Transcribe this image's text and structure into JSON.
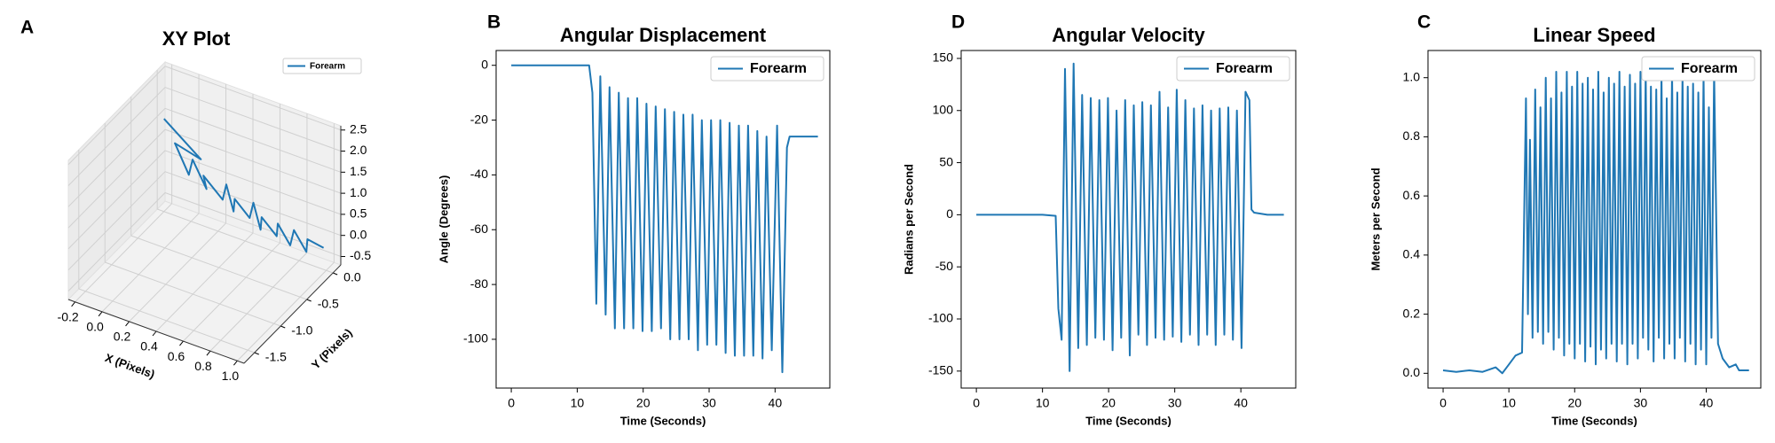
{
  "chart_data": [
    {
      "type": "line3d",
      "panel_label": "A",
      "title": "XY Plot",
      "xlabel": "X (Pixels)",
      "ylabel": "Y (Pixels)",
      "xlim": [
        -0.25,
        1.05
      ],
      "ylim": [
        -1.7,
        0.15
      ],
      "zlim": [
        -0.7,
        2.6
      ],
      "xticks": [
        -0.2,
        {
          "value": 0,
          "label": "0.0"
        },
        0.2,
        0.4,
        0.6,
        0.8,
        {
          "value": 1,
          "label": "1.0"
        }
      ],
      "yticks": [
        -1.5,
        {
          "value": -1,
          "label": "-1.0"
        },
        -0.5,
        {
          "value": 0,
          "label": "0.0"
        }
      ],
      "zticks": [
        -0.5,
        {
          "value": 0,
          "label": "0.0"
        },
        0.5,
        {
          "value": 1,
          "label": "1.0"
        },
        1.5,
        {
          "value": 2,
          "label": "2.0"
        },
        2.5
      ],
      "legend": "upper right",
      "grid": true,
      "series": [
        {
          "name": "Forearm",
          "color": "#1f77b4",
          "x": [
            -0.2,
            0.15,
            -0.1,
            0.1,
            0.05,
            0.25,
            0.15,
            0.35,
            0.3,
            0.45,
            0.4,
            0.55,
            0.5,
            0.65,
            0.6,
            0.75,
            0.7,
            0.85,
            0.8,
            0.95,
            0.9,
            1.0
          ],
          "y": [
            0.0,
            -0.2,
            -0.05,
            -0.3,
            -0.1,
            -0.35,
            -0.15,
            -0.3,
            -0.1,
            -0.35,
            -0.2,
            -0.3,
            -0.1,
            -0.35,
            -0.2,
            -0.3,
            -0.15,
            -0.3,
            -0.1,
            -0.25,
            -0.1,
            -0.05
          ],
          "z": [
            1.5,
            1.2,
            1.1,
            0.9,
            0.95,
            0.8,
            0.75,
            0.6,
            0.65,
            0.5,
            0.55,
            0.4,
            0.45,
            0.3,
            0.35,
            0.2,
            0.25,
            0.1,
            0.15,
            0.0,
            0.05,
            -0.1
          ]
        }
      ]
    },
    {
      "type": "line",
      "panel_label": "B",
      "title": "Angular Displacement",
      "xlabel": "Time (Seconds)",
      "ylabel": "Angle (Degrees)",
      "xlim": [
        -2.3,
        48.3
      ],
      "ylim": [
        -117.8,
        5.4
      ],
      "xticks": [
        0,
        10,
        20,
        30,
        40
      ],
      "yticks": [
        0,
        -20,
        -40,
        -60,
        -80,
        -100
      ],
      "legend": "upper right",
      "x": [
        0,
        11.8,
        12.3,
        12.9,
        13.5,
        14.3,
        14.9,
        15.7,
        16.3,
        17.1,
        17.7,
        18.5,
        19.1,
        19.9,
        20.5,
        21.3,
        21.9,
        22.7,
        23.3,
        24.1,
        24.7,
        25.5,
        26.1,
        26.9,
        27.5,
        28.3,
        28.9,
        29.7,
        30.3,
        31.1,
        31.7,
        32.5,
        33.1,
        33.9,
        34.5,
        35.3,
        35.9,
        36.7,
        37.3,
        38.1,
        38.7,
        39.5,
        40.3,
        41.1,
        41.8,
        42.2,
        46.5
      ],
      "series": [
        {
          "name": "Forearm",
          "color": "#1f77b4",
          "values": [
            0,
            0,
            -10,
            -87,
            -4,
            -91,
            -8,
            -96,
            -10,
            -96,
            -12,
            -96,
            -12,
            -97,
            -14,
            -97,
            -15,
            -96,
            -16,
            -100,
            -17,
            -100,
            -18,
            -100,
            -18,
            -104,
            -20,
            -102,
            -20,
            -102,
            -20,
            -105,
            -21,
            -106,
            -22,
            -106,
            -22,
            -106,
            -24,
            -107,
            -26,
            -104,
            -22,
            -112,
            -30,
            -26,
            -26
          ]
        }
      ]
    },
    {
      "type": "line",
      "panel_label": "D",
      "title": "Angular Velocity",
      "xlabel": "Time (Seconds)",
      "ylabel": "Radians per Second",
      "xlim": [
        -2.3,
        48.3
      ],
      "ylim": [
        -166.3,
        157.6
      ],
      "xticks": [
        0,
        10,
        20,
        30,
        40
      ],
      "yticks": [
        150,
        100,
        50,
        0,
        -50,
        -100,
        -150
      ],
      "legend": "upper right",
      "x": [
        0,
        5,
        10,
        12,
        12.4,
        12.9,
        13.4,
        14.1,
        14.7,
        15.4,
        16.0,
        16.7,
        17.3,
        18.0,
        18.6,
        19.3,
        19.9,
        20.6,
        21.2,
        21.9,
        22.5,
        23.2,
        23.8,
        24.5,
        25.1,
        25.8,
        26.4,
        27.1,
        27.7,
        28.4,
        29.0,
        29.7,
        30.3,
        31.0,
        31.6,
        32.3,
        32.9,
        33.6,
        34.2,
        34.9,
        35.5,
        36.2,
        36.8,
        37.5,
        38.1,
        38.8,
        39.4,
        40.1,
        40.7,
        41.3,
        41.6,
        42,
        44,
        46.5
      ],
      "series": [
        {
          "name": "Forearm",
          "color": "#1f77b4",
          "values": [
            0,
            0,
            0,
            -1,
            -90,
            -120,
            140,
            -150,
            145,
            -128,
            115,
            -125,
            112,
            -118,
            110,
            -120,
            112,
            -130,
            100,
            -118,
            110,
            -135,
            105,
            -115,
            108,
            -125,
            105,
            -118,
            118,
            -120,
            103,
            -117,
            120,
            -122,
            110,
            -115,
            102,
            -125,
            105,
            -115,
            100,
            -125,
            102,
            -115,
            103,
            -120,
            100,
            -128,
            118,
            110,
            5,
            2,
            0,
            0
          ]
        }
      ]
    },
    {
      "type": "line",
      "panel_label": "C",
      "title": "Linear Speed",
      "xlabel": "Time (Seconds)",
      "ylabel": "Meters per Second",
      "xlim": [
        -2.3,
        48.3
      ],
      "ylim": [
        -0.05,
        1.092
      ],
      "xticks": [
        0,
        10,
        20,
        30,
        40
      ],
      "yticks": [
        {
          "value": 0,
          "label": "0.0"
        },
        0.2,
        0.4,
        0.6,
        0.8,
        {
          "value": 1,
          "label": "1.0"
        }
      ],
      "legend": "upper right",
      "x": [
        0,
        2,
        4,
        6,
        8,
        9,
        10,
        11,
        12,
        12.6,
        12.9,
        13.2,
        13.6,
        14.0,
        14.4,
        14.8,
        15.2,
        15.6,
        16.0,
        16.4,
        16.8,
        17.2,
        17.6,
        18.0,
        18.4,
        18.8,
        19.2,
        19.6,
        20.0,
        20.4,
        20.8,
        21.2,
        21.6,
        22.0,
        22.4,
        22.8,
        23.2,
        23.6,
        24.0,
        24.4,
        24.8,
        25.2,
        25.6,
        26.0,
        26.4,
        26.8,
        27.2,
        27.6,
        28.0,
        28.4,
        28.8,
        29.2,
        29.6,
        30.0,
        30.4,
        30.8,
        31.2,
        31.6,
        32.0,
        32.4,
        32.8,
        33.2,
        33.6,
        34.0,
        34.4,
        34.8,
        35.2,
        35.6,
        36.0,
        36.4,
        36.8,
        37.2,
        37.6,
        38.0,
        38.4,
        38.8,
        39.2,
        39.6,
        40.0,
        40.4,
        40.8,
        41.2,
        41.8,
        42.5,
        43.5,
        44.5,
        45.0,
        46.5
      ],
      "series": [
        {
          "name": "Forearm",
          "color": "#1f77b4",
          "values": [
            0.01,
            0.005,
            0.01,
            0.005,
            0.02,
            0.0,
            0.03,
            0.06,
            0.07,
            0.93,
            0.2,
            0.79,
            0.12,
            0.96,
            0.14,
            0.9,
            0.1,
            1.0,
            0.14,
            0.93,
            0.08,
            1.02,
            0.12,
            0.95,
            0.06,
            1.02,
            0.1,
            0.97,
            0.05,
            1.02,
            0.1,
            0.98,
            0.04,
            1.0,
            0.09,
            0.96,
            0.03,
            1.02,
            0.08,
            0.95,
            0.05,
            1.0,
            0.1,
            0.98,
            0.04,
            1.02,
            0.1,
            0.97,
            0.03,
            1.01,
            0.1,
            0.98,
            0.05,
            1.02,
            0.12,
            1.02,
            0.08,
            0.97,
            0.04,
            0.96,
            0.12,
            1.01,
            0.05,
            0.93,
            0.1,
            1.02,
            0.05,
            0.95,
            0.12,
            1.01,
            0.04,
            0.97,
            0.1,
            0.98,
            0.03,
            0.95,
            0.08,
            1.01,
            0.03,
            0.9,
            0.12,
            1.02,
            0.1,
            0.05,
            0.02,
            0.03,
            0.01,
            0.01
          ]
        }
      ]
    }
  ]
}
